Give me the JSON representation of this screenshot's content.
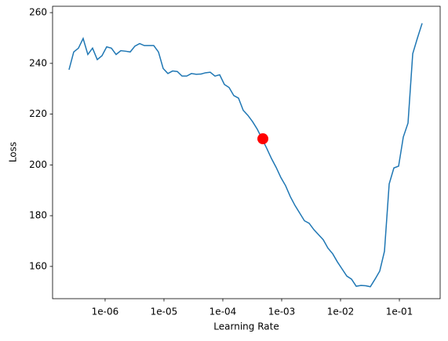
{
  "chart_data": {
    "type": "line",
    "xlabel": "Learning Rate",
    "ylabel": "Loss",
    "xscale": "log",
    "x": [
      2.436e-07,
      2.929e-07,
      3.522e-07,
      4.233e-07,
      5.089e-07,
      6.118e-07,
      7.356e-07,
      8.844e-07,
      1.063e-06,
      1.278e-06,
      1.537e-06,
      1.848e-06,
      2.222e-06,
      2.671e-06,
      3.211e-06,
      3.861e-06,
      4.642e-06,
      5.581e-06,
      6.71e-06,
      8.067e-06,
      9.698e-06,
      1.166e-05,
      1.402e-05,
      1.686e-05,
      2.027e-05,
      2.436e-05,
      2.929e-05,
      3.522e-05,
      4.233e-05,
      5.089e-05,
      6.118e-05,
      7.356e-05,
      8.844e-05,
      0.0001063,
      0.0001278,
      0.0001537,
      0.0001848,
      0.0002222,
      0.0002671,
      0.0003211,
      0.0003861,
      0.0004642,
      0.0005581,
      0.000671,
      0.0008067,
      0.0009698,
      0.001166,
      0.001402,
      0.001686,
      0.002027,
      0.002436,
      0.002929,
      0.003522,
      0.004233,
      0.005089,
      0.006118,
      0.007356,
      0.008844,
      0.01063,
      0.01278,
      0.01537,
      0.01848,
      0.02222,
      0.02671,
      0.03211,
      0.03861,
      0.04642,
      0.05581,
      0.0671,
      0.08067,
      0.09698,
      0.1166,
      0.1402,
      0.1686,
      0.2027,
      0.2436
    ],
    "series": [
      {
        "color": "#1f77b4",
        "values": [
          237.5,
          244.5,
          246,
          249.8,
          243.5,
          246,
          241.5,
          243,
          246.5,
          246,
          243.5,
          245,
          244.8,
          244.5,
          246.8,
          247.8,
          247,
          247,
          247,
          244.5,
          238,
          236,
          237,
          236.8,
          235,
          235,
          236,
          235.7,
          235.8,
          236.3,
          236.5,
          235,
          235.5,
          231.7,
          230.5,
          227.3,
          226.3,
          221.5,
          219.5,
          217,
          214,
          210.3,
          206.5,
          202.5,
          199,
          195,
          191.8,
          187.5,
          184,
          181,
          178,
          177,
          174.5,
          172.5,
          170.5,
          167.2,
          165,
          161.8,
          159,
          156.2,
          155,
          152.2,
          152.5,
          152.4,
          152,
          155,
          158.2,
          166,
          192.5,
          198.8,
          199.5,
          211,
          216.5,
          243.8,
          250,
          255.8
        ]
      }
    ],
    "marker": {
      "x": 0.000479,
      "y": 210.3,
      "color": "#ff0000"
    },
    "xlim": [
      1.28e-07,
      0.493
    ],
    "ylim": [
      147.3,
      262.5
    ],
    "xticks": [
      {
        "value": 1e-06,
        "label": "1e-06"
      },
      {
        "value": 1e-05,
        "label": "1e-05"
      },
      {
        "value": 0.0001,
        "label": "1e-04"
      },
      {
        "value": 0.001,
        "label": "1e-03"
      },
      {
        "value": 0.01,
        "label": "1e-02"
      },
      {
        "value": 0.1,
        "label": "1e-01"
      }
    ],
    "yticks": [
      160,
      180,
      200,
      220,
      240,
      260
    ]
  }
}
